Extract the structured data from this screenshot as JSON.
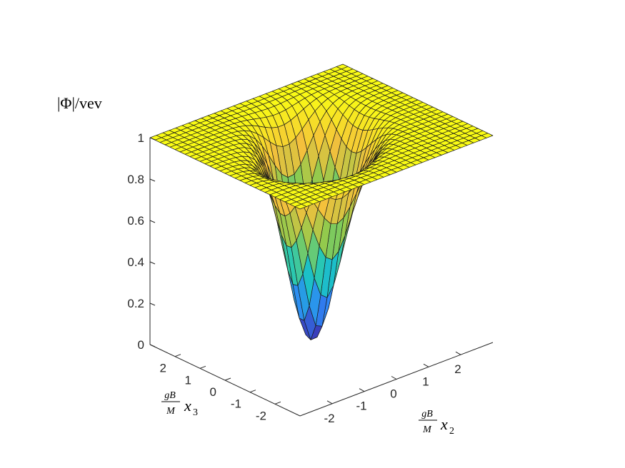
{
  "chart_data": {
    "type": "surface",
    "zlabel": "|Φ|/vev",
    "xlabel": {
      "frac_num": "gB",
      "frac_den": "M",
      "var": "x",
      "sub": "2"
    },
    "ylabel": {
      "frac_num": "gB",
      "frac_den": "M",
      "var": "x",
      "sub": "3"
    },
    "xlim": [
      -3,
      3
    ],
    "ylim": [
      -3,
      3
    ],
    "zlim": [
      0,
      1
    ],
    "xticks": [
      "-2",
      "-1",
      "0",
      "1",
      "2"
    ],
    "xtick_values": [
      -2,
      -1,
      0,
      1,
      2
    ],
    "yticks": [
      "-2",
      "-1",
      "0",
      "1",
      "2"
    ],
    "ytick_values": [
      -2,
      -1,
      0,
      1,
      2
    ],
    "zticks": [
      "0",
      "0.2",
      "0.4",
      "0.6",
      "0.8",
      "1"
    ],
    "ztick_values": [
      0,
      0.2,
      0.4,
      0.6,
      0.8,
      1
    ],
    "grid_n": 31,
    "colormap": "parula",
    "surface": {
      "background_level": 1.0,
      "ring_radius": 1.0,
      "zeros": [
        [
          -0.7,
          -0.55
        ],
        [
          0.3,
          0.7
        ]
      ],
      "min_values": [
        0.22,
        0.09
      ]
    },
    "colormap_stops": [
      "#3e26a8",
      "#2e87f7",
      "#1ac7c2",
      "#8dcb4e",
      "#f4c03c",
      "#f9fb15"
    ]
  }
}
